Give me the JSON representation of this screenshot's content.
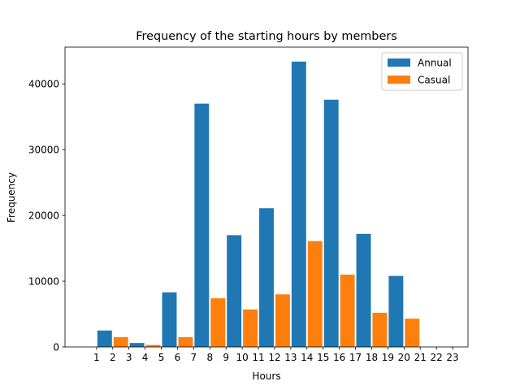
{
  "chart_data": {
    "type": "bar",
    "title": "Frequency of the starting hours by members",
    "xlabel": "Hours",
    "ylabel": "Frequency",
    "ylim": [
      0,
      45600
    ],
    "y_ticks": [
      0,
      10000,
      20000,
      30000,
      40000
    ],
    "x_tick_labels": [
      "1",
      "2",
      "3",
      "4",
      "5",
      "6",
      "7",
      "8",
      "9",
      "10",
      "11",
      "12",
      "13",
      "14",
      "15",
      "16",
      "17",
      "18",
      "19",
      "20",
      "21",
      "22",
      "23"
    ],
    "grid": false,
    "legend_position": "top-right",
    "series": [
      {
        "name": "Annual",
        "color": "#1f77b4",
        "bars": [
          {
            "x": 1.5,
            "value": 2500
          },
          {
            "x": 3.5,
            "value": 600
          },
          {
            "x": 5.5,
            "value": 8300
          },
          {
            "x": 7.5,
            "value": 37000
          },
          {
            "x": 9.5,
            "value": 17000
          },
          {
            "x": 11.5,
            "value": 21100
          },
          {
            "x": 13.5,
            "value": 43400
          },
          {
            "x": 15.5,
            "value": 37600
          },
          {
            "x": 17.5,
            "value": 17200
          },
          {
            "x": 19.5,
            "value": 10800
          }
        ]
      },
      {
        "name": "Casual",
        "color": "#ff7f0e",
        "bars": [
          {
            "x": 2.5,
            "value": 1500
          },
          {
            "x": 4.5,
            "value": 300
          },
          {
            "x": 6.5,
            "value": 1500
          },
          {
            "x": 8.5,
            "value": 7400
          },
          {
            "x": 10.5,
            "value": 5700
          },
          {
            "x": 12.5,
            "value": 8000
          },
          {
            "x": 14.5,
            "value": 16100
          },
          {
            "x": 16.5,
            "value": 11000
          },
          {
            "x": 18.5,
            "value": 5200
          },
          {
            "x": 20.5,
            "value": 4300
          }
        ]
      }
    ]
  }
}
